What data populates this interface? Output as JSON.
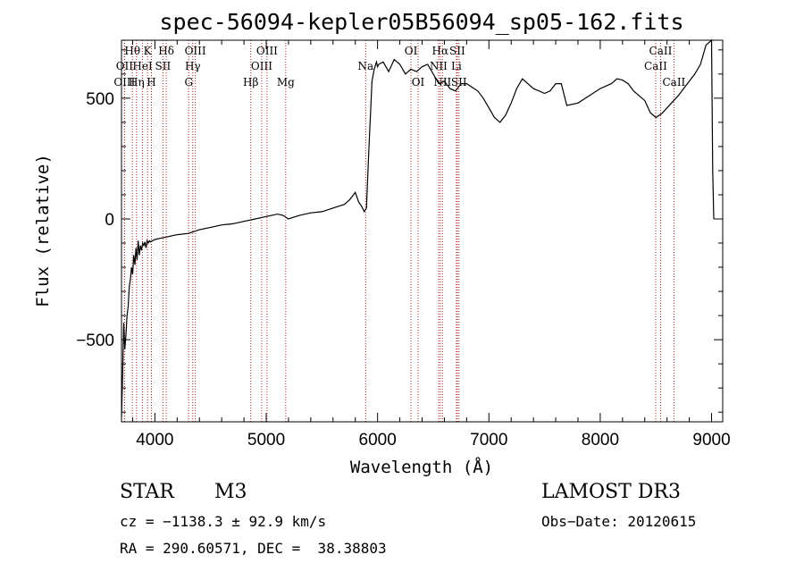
{
  "chart_data": {
    "type": "line",
    "title": "spec-56094-kepler05B56094_sp05-162.fits",
    "xlabel": "Wavelength (Å)",
    "ylabel": "Flux (relative)",
    "xlim": [
      3700,
      9100
    ],
    "ylim": [
      -840,
      740
    ],
    "x_ticks": [
      4000,
      5000,
      6000,
      7000,
      8000,
      9000
    ],
    "y_ticks": [
      -500,
      0,
      500
    ],
    "series": [
      {
        "name": "flux",
        "x": [
          3700,
          3710,
          3720,
          3730,
          3740,
          3750,
          3760,
          3770,
          3780,
          3790,
          3800,
          3810,
          3820,
          3830,
          3840,
          3850,
          3860,
          3870,
          3880,
          3890,
          3900,
          3910,
          3920,
          3930,
          3940,
          3950,
          3960,
          3980,
          4000,
          4050,
          4100,
          4150,
          4200,
          4300,
          4400,
          4500,
          4600,
          4700,
          4800,
          4900,
          5000,
          5100,
          5150,
          5200,
          5300,
          5400,
          5500,
          5600,
          5700,
          5750,
          5800,
          5830,
          5860,
          5880,
          5900,
          5920,
          5950,
          5970,
          5990,
          6000,
          6010,
          6050,
          6100,
          6150,
          6200,
          6250,
          6300,
          6350,
          6400,
          6450,
          6500,
          6550,
          6600,
          6650,
          6700,
          6750,
          6800,
          6850,
          6900,
          6950,
          7000,
          7050,
          7100,
          7150,
          7200,
          7250,
          7300,
          7400,
          7500,
          7550,
          7600,
          7650,
          7700,
          7800,
          7900,
          8000,
          8100,
          8150,
          8200,
          8250,
          8300,
          8400,
          8450,
          8500,
          8550,
          8600,
          8700,
          8800,
          8850,
          8900,
          8950,
          9000,
          9010,
          9020
        ],
        "values": [
          -820,
          -650,
          -430,
          -540,
          -480,
          -400,
          -360,
          -280,
          -250,
          -200,
          -230,
          -150,
          -190,
          -120,
          -170,
          -90,
          -150,
          -110,
          -130,
          -100,
          -110,
          -95,
          -120,
          -90,
          -100,
          -90,
          -95,
          -90,
          -85,
          -80,
          -75,
          -70,
          -65,
          -60,
          -45,
          -35,
          -25,
          -20,
          -10,
          0,
          10,
          20,
          15,
          0,
          15,
          25,
          30,
          45,
          60,
          80,
          110,
          70,
          50,
          30,
          45,
          270,
          570,
          620,
          650,
          630,
          640,
          650,
          610,
          660,
          640,
          600,
          620,
          610,
          630,
          640,
          600,
          560,
          570,
          540,
          530,
          560,
          560,
          545,
          530,
          500,
          460,
          420,
          400,
          430,
          480,
          540,
          580,
          540,
          520,
          530,
          560,
          560,
          470,
          480,
          510,
          540,
          560,
          580,
          575,
          560,
          530,
          490,
          440,
          420,
          435,
          460,
          510,
          570,
          600,
          640,
          720,
          740,
          200,
          0
        ]
      }
    ],
    "line_markers": [
      {
        "label": "Hθ",
        "wl": 3798,
        "row": 0
      },
      {
        "label": "OII",
        "wl": 3727,
        "row": 1
      },
      {
        "label": "OIII",
        "wl": 3727,
        "row": 2
      },
      {
        "label": "K",
        "wl": 3934,
        "row": 0
      },
      {
        "label": "HeI",
        "wl": 3889,
        "row": 1
      },
      {
        "label": "Hη",
        "wl": 3835,
        "row": 2
      },
      {
        "label": "Hδ",
        "wl": 4102,
        "row": 0
      },
      {
        "label": "SII",
        "wl": 4072,
        "row": 1
      },
      {
        "label": "H",
        "wl": 3969,
        "row": 2
      },
      {
        "label": "OIII",
        "wl": 4363,
        "row": 0
      },
      {
        "label": "Hγ",
        "wl": 4340,
        "row": 1
      },
      {
        "label": "G",
        "wl": 4304,
        "row": 2
      },
      {
        "label": "OIII",
        "wl": 5007,
        "row": 0
      },
      {
        "label": "OIII",
        "wl": 4959,
        "row": 1
      },
      {
        "label": "Hβ",
        "wl": 4861,
        "row": 2
      },
      {
        "label": "Mg",
        "wl": 5175,
        "row": 2
      },
      {
        "label": "Na",
        "wl": 5893,
        "row": 1
      },
      {
        "label": "OI",
        "wl": 6300,
        "row": 0
      },
      {
        "label": "OI",
        "wl": 6364,
        "row": 2
      },
      {
        "label": "Hα",
        "wl": 6563,
        "row": 0
      },
      {
        "label": "SII",
        "wl": 6716,
        "row": 0
      },
      {
        "label": "NII",
        "wl": 6548,
        "row": 1
      },
      {
        "label": "Li",
        "wl": 6708,
        "row": 1
      },
      {
        "label": "NII",
        "wl": 6583,
        "row": 2
      },
      {
        "label": "SII",
        "wl": 6731,
        "row": 2
      },
      {
        "label": "CaII",
        "wl": 8542,
        "row": 0
      },
      {
        "label": "CaII",
        "wl": 8498,
        "row": 1
      },
      {
        "label": "CaII",
        "wl": 8662,
        "row": 2
      }
    ]
  },
  "info": {
    "object_type": "STAR",
    "subclass": "M3",
    "survey": "LAMOST DR3",
    "redshift_line": "cz = −1138.3 ± 92.9 km/s",
    "obs_date": "Obs−Date: 20120615",
    "coords": "RA = 290.60571, DEC =  38.38803"
  },
  "colors": {
    "line_marker": "#b22222",
    "spectrum": "#000000"
  }
}
